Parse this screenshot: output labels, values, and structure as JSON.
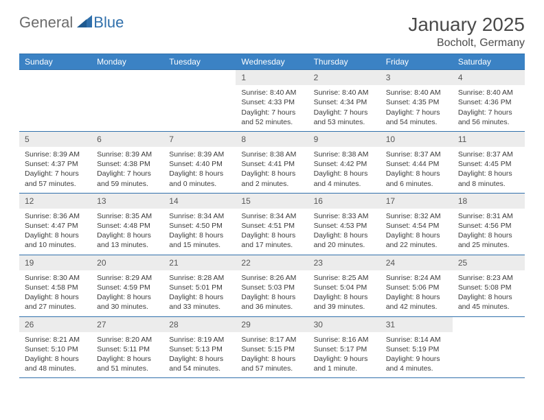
{
  "logo": {
    "general": "General",
    "blue": "Blue"
  },
  "title": "January 2025",
  "location": "Bocholt, Germany",
  "colors": {
    "header_bg": "#3b82c4",
    "header_text": "#ffffff",
    "border": "#2f6fab",
    "daynum_bg": "#ececec",
    "text": "#3a3a3a"
  },
  "daysOfWeek": [
    "Sunday",
    "Monday",
    "Tuesday",
    "Wednesday",
    "Thursday",
    "Friday",
    "Saturday"
  ],
  "firstDayOffset": 3,
  "days": [
    {
      "n": 1,
      "sunrise": "8:40 AM",
      "sunset": "4:33 PM",
      "dlh": 7,
      "dlm": 52
    },
    {
      "n": 2,
      "sunrise": "8:40 AM",
      "sunset": "4:34 PM",
      "dlh": 7,
      "dlm": 53
    },
    {
      "n": 3,
      "sunrise": "8:40 AM",
      "sunset": "4:35 PM",
      "dlh": 7,
      "dlm": 54
    },
    {
      "n": 4,
      "sunrise": "8:40 AM",
      "sunset": "4:36 PM",
      "dlh": 7,
      "dlm": 56
    },
    {
      "n": 5,
      "sunrise": "8:39 AM",
      "sunset": "4:37 PM",
      "dlh": 7,
      "dlm": 57
    },
    {
      "n": 6,
      "sunrise": "8:39 AM",
      "sunset": "4:38 PM",
      "dlh": 7,
      "dlm": 59
    },
    {
      "n": 7,
      "sunrise": "8:39 AM",
      "sunset": "4:40 PM",
      "dlh": 8,
      "dlm": 0
    },
    {
      "n": 8,
      "sunrise": "8:38 AM",
      "sunset": "4:41 PM",
      "dlh": 8,
      "dlm": 2
    },
    {
      "n": 9,
      "sunrise": "8:38 AM",
      "sunset": "4:42 PM",
      "dlh": 8,
      "dlm": 4
    },
    {
      "n": 10,
      "sunrise": "8:37 AM",
      "sunset": "4:44 PM",
      "dlh": 8,
      "dlm": 6
    },
    {
      "n": 11,
      "sunrise": "8:37 AM",
      "sunset": "4:45 PM",
      "dlh": 8,
      "dlm": 8
    },
    {
      "n": 12,
      "sunrise": "8:36 AM",
      "sunset": "4:47 PM",
      "dlh": 8,
      "dlm": 10
    },
    {
      "n": 13,
      "sunrise": "8:35 AM",
      "sunset": "4:48 PM",
      "dlh": 8,
      "dlm": 13
    },
    {
      "n": 14,
      "sunrise": "8:34 AM",
      "sunset": "4:50 PM",
      "dlh": 8,
      "dlm": 15
    },
    {
      "n": 15,
      "sunrise": "8:34 AM",
      "sunset": "4:51 PM",
      "dlh": 8,
      "dlm": 17
    },
    {
      "n": 16,
      "sunrise": "8:33 AM",
      "sunset": "4:53 PM",
      "dlh": 8,
      "dlm": 20
    },
    {
      "n": 17,
      "sunrise": "8:32 AM",
      "sunset": "4:54 PM",
      "dlh": 8,
      "dlm": 22
    },
    {
      "n": 18,
      "sunrise": "8:31 AM",
      "sunset": "4:56 PM",
      "dlh": 8,
      "dlm": 25
    },
    {
      "n": 19,
      "sunrise": "8:30 AM",
      "sunset": "4:58 PM",
      "dlh": 8,
      "dlm": 27
    },
    {
      "n": 20,
      "sunrise": "8:29 AM",
      "sunset": "4:59 PM",
      "dlh": 8,
      "dlm": 30
    },
    {
      "n": 21,
      "sunrise": "8:28 AM",
      "sunset": "5:01 PM",
      "dlh": 8,
      "dlm": 33
    },
    {
      "n": 22,
      "sunrise": "8:26 AM",
      "sunset": "5:03 PM",
      "dlh": 8,
      "dlm": 36
    },
    {
      "n": 23,
      "sunrise": "8:25 AM",
      "sunset": "5:04 PM",
      "dlh": 8,
      "dlm": 39
    },
    {
      "n": 24,
      "sunrise": "8:24 AM",
      "sunset": "5:06 PM",
      "dlh": 8,
      "dlm": 42
    },
    {
      "n": 25,
      "sunrise": "8:23 AM",
      "sunset": "5:08 PM",
      "dlh": 8,
      "dlm": 45
    },
    {
      "n": 26,
      "sunrise": "8:21 AM",
      "sunset": "5:10 PM",
      "dlh": 8,
      "dlm": 48
    },
    {
      "n": 27,
      "sunrise": "8:20 AM",
      "sunset": "5:11 PM",
      "dlh": 8,
      "dlm": 51
    },
    {
      "n": 28,
      "sunrise": "8:19 AM",
      "sunset": "5:13 PM",
      "dlh": 8,
      "dlm": 54
    },
    {
      "n": 29,
      "sunrise": "8:17 AM",
      "sunset": "5:15 PM",
      "dlh": 8,
      "dlm": 57
    },
    {
      "n": 30,
      "sunrise": "8:16 AM",
      "sunset": "5:17 PM",
      "dlh": 9,
      "dlm": 1
    },
    {
      "n": 31,
      "sunrise": "8:14 AM",
      "sunset": "5:19 PM",
      "dlh": 9,
      "dlm": 4
    }
  ],
  "labels": {
    "sunrise": "Sunrise:",
    "sunset": "Sunset:",
    "daylight": "Daylight:",
    "hours": "hours",
    "hour": "hour",
    "and": "and",
    "minutes": "minutes.",
    "minute": "minute."
  }
}
